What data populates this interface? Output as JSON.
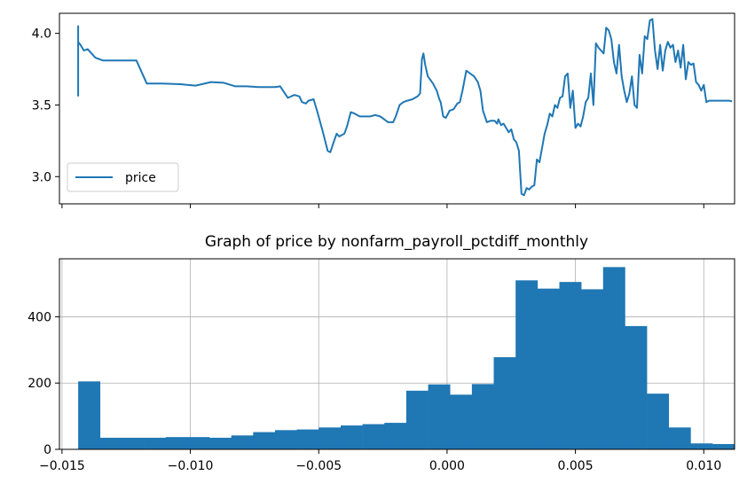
{
  "chart_data": [
    {
      "type": "line",
      "title": "",
      "xlabel": "",
      "ylabel": "",
      "xlim": [
        -0.0151,
        0.0112
      ],
      "ylim": [
        2.81,
        4.14
      ],
      "x_ticks": [
        -0.015,
        -0.01,
        -0.005,
        0.0,
        0.005,
        0.01
      ],
      "x_tick_labels_shown": false,
      "y_ticks": [
        3.0,
        3.5,
        4.0
      ],
      "y_tick_labels": [
        "3.0",
        "3.5",
        "4.0"
      ],
      "grid": false,
      "legend": {
        "position": "lower-left",
        "entries": [
          "price"
        ]
      },
      "series": [
        {
          "name": "price",
          "color": "#1f77b4",
          "points": [
            [
              -0.01437,
              3.56
            ],
            [
              -0.01437,
              4.05
            ],
            [
              -0.01437,
              3.94
            ],
            [
              -0.01428,
              3.92
            ],
            [
              -0.01415,
              3.88
            ],
            [
              -0.014,
              3.89
            ],
            [
              -0.01385,
              3.86
            ],
            [
              -0.0137,
              3.83
            ],
            [
              -0.0134,
              3.81
            ],
            [
              -0.013,
              3.81
            ],
            [
              -0.0125,
              3.81
            ],
            [
              -0.0121,
              3.81
            ],
            [
              -0.0117,
              3.65
            ],
            [
              -0.0111,
              3.65
            ],
            [
              -0.0104,
              3.645
            ],
            [
              -0.0098,
              3.635
            ],
            [
              -0.0092,
              3.66
            ],
            [
              -0.0087,
              3.655
            ],
            [
              -0.00825,
              3.63
            ],
            [
              -0.0078,
              3.63
            ],
            [
              -0.00735,
              3.625
            ],
            [
              -0.007,
              3.625
            ],
            [
              -0.0067,
              3.625
            ],
            [
              -0.0065,
              3.63
            ],
            [
              -0.0062,
              3.55
            ],
            [
              -0.00595,
              3.57
            ],
            [
              -0.00575,
              3.56
            ],
            [
              -0.00565,
              3.52
            ],
            [
              -0.0055,
              3.51
            ],
            [
              -0.0054,
              3.53
            ],
            [
              -0.0052,
              3.54
            ],
            [
              -0.00505,
              3.45
            ],
            [
              -0.00485,
              3.32
            ],
            [
              -0.00465,
              3.18
            ],
            [
              -0.00455,
              3.17
            ],
            [
              -0.0044,
              3.25
            ],
            [
              -0.0043,
              3.3
            ],
            [
              -0.0042,
              3.28
            ],
            [
              -0.004,
              3.3
            ],
            [
              -0.0039,
              3.35
            ],
            [
              -0.00375,
              3.45
            ],
            [
              -0.0036,
              3.44
            ],
            [
              -0.0034,
              3.42
            ],
            [
              -0.0032,
              3.42
            ],
            [
              -0.003,
              3.42
            ],
            [
              -0.0028,
              3.43
            ],
            [
              -0.0026,
              3.42
            ],
            [
              -0.00245,
              3.4
            ],
            [
              -0.0023,
              3.38
            ],
            [
              -0.0021,
              3.38
            ],
            [
              -0.002,
              3.42
            ],
            [
              -0.00185,
              3.5
            ],
            [
              -0.0017,
              3.52
            ],
            [
              -0.00155,
              3.53
            ],
            [
              -0.00135,
              3.54
            ],
            [
              -0.00115,
              3.56
            ],
            [
              -0.00105,
              3.58
            ],
            [
              -0.00098,
              3.82
            ],
            [
              -0.00092,
              3.86
            ],
            [
              -0.00085,
              3.78
            ],
            [
              -0.00075,
              3.7
            ],
            [
              -0.00055,
              3.65
            ],
            [
              -0.0004,
              3.6
            ],
            [
              -0.0003,
              3.54
            ],
            [
              -0.00025,
              3.52
            ],
            [
              -0.00015,
              3.42
            ],
            [
              -5e-05,
              3.41
            ],
            [
              0.0001,
              3.46
            ],
            [
              0.00025,
              3.47
            ],
            [
              0.0004,
              3.51
            ],
            [
              0.0005,
              3.52
            ],
            [
              0.0006,
              3.6
            ],
            [
              0.00075,
              3.74
            ],
            [
              0.0009,
              3.72
            ],
            [
              0.00105,
              3.7
            ],
            [
              0.0012,
              3.66
            ],
            [
              0.0013,
              3.6
            ],
            [
              0.0014,
              3.46
            ],
            [
              0.00155,
              3.38
            ],
            [
              0.0017,
              3.39
            ],
            [
              0.00185,
              3.39
            ],
            [
              0.00195,
              3.37
            ],
            [
              0.002,
              3.4
            ],
            [
              0.0021,
              3.36
            ],
            [
              0.0022,
              3.37
            ],
            [
              0.0024,
              3.31
            ],
            [
              0.0025,
              3.33
            ],
            [
              0.0026,
              3.26
            ],
            [
              0.0027,
              3.24
            ],
            [
              0.0028,
              3.18
            ],
            [
              0.0029,
              2.88
            ],
            [
              0.003,
              2.87
            ],
            [
              0.0031,
              2.92
            ],
            [
              0.0032,
              2.91
            ],
            [
              0.0033,
              2.93
            ],
            [
              0.0034,
              2.94
            ],
            [
              0.0035,
              3.12
            ],
            [
              0.0036,
              3.1
            ],
            [
              0.0037,
              3.2
            ],
            [
              0.0038,
              3.3
            ],
            [
              0.0039,
              3.36
            ],
            [
              0.004,
              3.44
            ],
            [
              0.0041,
              3.42
            ],
            [
              0.0042,
              3.5
            ],
            [
              0.0043,
              3.48
            ],
            [
              0.0044,
              3.55
            ],
            [
              0.0045,
              3.56
            ],
            [
              0.0046,
              3.7
            ],
            [
              0.0047,
              3.72
            ],
            [
              0.0048,
              3.48
            ],
            [
              0.0049,
              3.6
            ],
            [
              0.005,
              3.34
            ],
            [
              0.0051,
              3.37
            ],
            [
              0.0052,
              3.35
            ],
            [
              0.0053,
              3.42
            ],
            [
              0.0054,
              3.52
            ],
            [
              0.0055,
              3.55
            ],
            [
              0.0056,
              3.72
            ],
            [
              0.0057,
              3.5
            ],
            [
              0.0058,
              3.93
            ],
            [
              0.0059,
              3.9
            ],
            [
              0.006,
              3.88
            ],
            [
              0.0061,
              3.86
            ],
            [
              0.0062,
              4.04
            ],
            [
              0.0063,
              4.02
            ],
            [
              0.0064,
              3.96
            ],
            [
              0.0065,
              3.8
            ],
            [
              0.0066,
              3.72
            ],
            [
              0.0067,
              3.92
            ],
            [
              0.0068,
              3.7
            ],
            [
              0.0069,
              3.6
            ],
            [
              0.007,
              3.52
            ],
            [
              0.0071,
              3.58
            ],
            [
              0.0072,
              3.7
            ],
            [
              0.0073,
              3.5
            ],
            [
              0.0074,
              3.48
            ],
            [
              0.0075,
              3.85
            ],
            [
              0.0076,
              3.72
            ],
            [
              0.0077,
              3.98
            ],
            [
              0.0078,
              3.96
            ],
            [
              0.0079,
              4.09
            ],
            [
              0.008,
              4.1
            ],
            [
              0.0081,
              3.88
            ],
            [
              0.0082,
              3.75
            ],
            [
              0.0083,
              3.92
            ],
            [
              0.0084,
              3.74
            ],
            [
              0.0085,
              3.88
            ],
            [
              0.0086,
              3.94
            ],
            [
              0.0087,
              3.9
            ],
            [
              0.0088,
              3.92
            ],
            [
              0.0089,
              3.8
            ],
            [
              0.009,
              3.88
            ],
            [
              0.0091,
              3.76
            ],
            [
              0.0092,
              3.92
            ],
            [
              0.0093,
              3.68
            ],
            [
              0.0094,
              3.8
            ],
            [
              0.0095,
              3.78
            ],
            [
              0.0096,
              3.79
            ],
            [
              0.0097,
              3.66
            ],
            [
              0.0098,
              3.64
            ],
            [
              0.0099,
              3.6
            ],
            [
              0.01,
              3.64
            ],
            [
              0.0101,
              3.52
            ],
            [
              0.0102,
              3.53
            ],
            [
              0.0105,
              3.53
            ],
            [
              0.011,
              3.53
            ],
            [
              0.0111,
              3.525
            ]
          ]
        }
      ]
    },
    {
      "type": "bar",
      "subtype": "histogram",
      "title": "Graph of price by nonfarm_payroll_pctdiff_monthly",
      "xlabel": "",
      "ylabel": "",
      "xlim": [
        -0.0151,
        0.0112
      ],
      "ylim": [
        0,
        575
      ],
      "x_ticks": [
        -0.015,
        -0.01,
        -0.005,
        0.0,
        0.005,
        0.01
      ],
      "x_tick_labels": [
        "−0.015",
        "−0.010",
        "−0.005",
        "0.000",
        "0.005",
        "0.010"
      ],
      "y_ticks": [
        0,
        200,
        400
      ],
      "y_tick_labels": [
        "0",
        "200",
        "400"
      ],
      "grid": true,
      "color": "#1f77b4",
      "bins": {
        "start": -0.01437,
        "width": 0.000852,
        "counts": [
          205,
          35,
          35,
          35,
          37,
          37,
          35,
          42,
          52,
          58,
          60,
          66,
          72,
          76,
          80,
          177,
          196,
          165,
          197,
          278,
          510,
          485,
          505,
          483,
          550,
          372,
          168,
          66,
          18,
          16
        ]
      }
    }
  ]
}
